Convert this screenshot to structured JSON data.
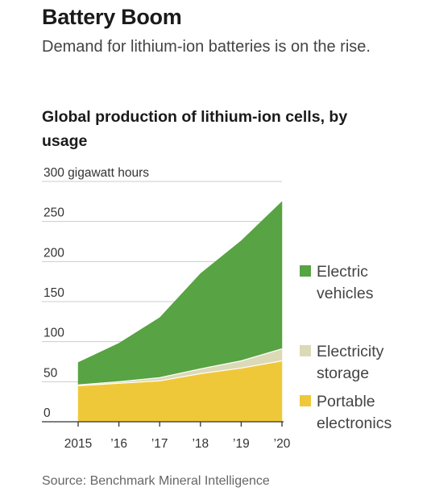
{
  "header": {
    "title": "Battery Boom",
    "subtitle": "Demand for lithium-ion batteries is on the rise."
  },
  "source": "Source: Benchmark Mineral Intelligence",
  "colors": {
    "electric_vehicles": "#58a343",
    "electricity_storage": "#dcd9b7",
    "portable_electronics": "#efc83a",
    "gridline": "#cccccc",
    "axis": "#333333"
  },
  "chart_data": {
    "type": "area",
    "stacked": true,
    "title": "Global production of lithium-ion cells, by usage",
    "ylabel": "",
    "ylim": [
      0,
      300
    ],
    "y_ticks": [
      0,
      50,
      100,
      150,
      200,
      250,
      300
    ],
    "y_tick_labels": [
      "0",
      "50",
      "100",
      "150",
      "200",
      "250",
      "300 gigawatt hours"
    ],
    "x": [
      2015,
      2016,
      2017,
      2018,
      2019,
      2020
    ],
    "x_tick_labels": [
      "2015",
      "’16",
      "’17",
      "’18",
      "’19",
      "’20"
    ],
    "series": [
      {
        "key": "portable_electronics",
        "name": "Portable electronics",
        "legend_lines": [
          "Portable",
          "electronics"
        ],
        "values": [
          45,
          48,
          51,
          60,
          67,
          76
        ]
      },
      {
        "key": "electricity_storage",
        "name": "Electricity storage",
        "legend_lines": [
          "Electricity",
          "storage"
        ],
        "values": [
          1,
          2,
          4,
          6,
          9,
          15
        ]
      },
      {
        "key": "electric_vehicles",
        "name": "Electric vehicles",
        "legend_lines": [
          "Electric",
          "vehicles"
        ],
        "values": [
          28,
          48,
          75,
          119,
          150,
          184
        ]
      }
    ],
    "grid": true,
    "legend_position": "right"
  }
}
